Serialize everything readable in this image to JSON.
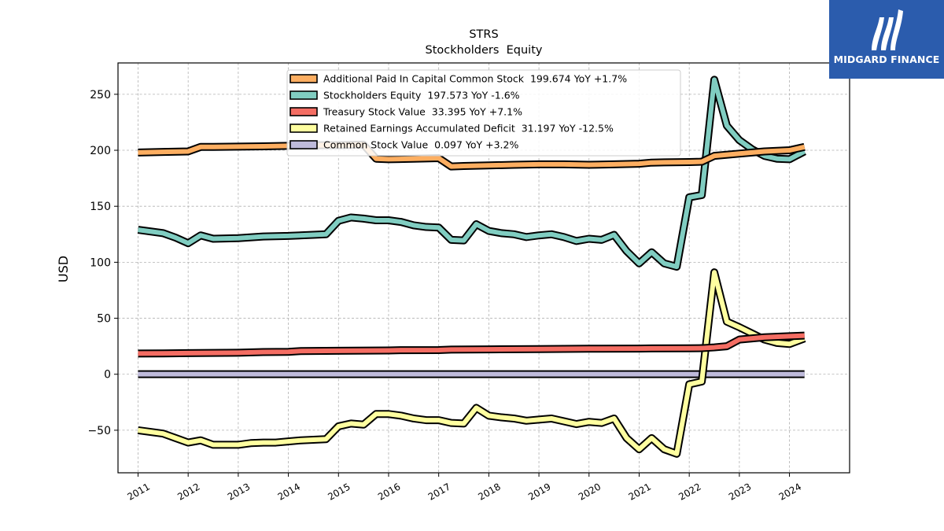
{
  "brand": {
    "name": "MIDGARD FINANCE",
    "bg_color": "#2b5cad"
  },
  "chart_data": {
    "type": "line",
    "title": "STRS",
    "subtitle": "Stockholders  Equity",
    "ylabel": "USD",
    "xlabel": "",
    "xlim": [
      2010.6,
      2025.2
    ],
    "ylim": [
      -88,
      278
    ],
    "yticks": [
      -50,
      0,
      50,
      100,
      150,
      200,
      250
    ],
    "xticks": [
      2011,
      2012,
      2013,
      2014,
      2015,
      2016,
      2017,
      2018,
      2019,
      2020,
      2021,
      2022,
      2023,
      2024
    ],
    "grid": true,
    "legend_position": "top-center",
    "series": [
      {
        "name": "Additional Paid In Capital Common Stock  199.674 YoY +1.7%",
        "color": "#fdae61",
        "points": [
          [
            2011.0,
            198
          ],
          [
            2011.5,
            198.5
          ],
          [
            2012.0,
            199
          ],
          [
            2012.25,
            203
          ],
          [
            2012.5,
            203
          ],
          [
            2013.0,
            203.3
          ],
          [
            2013.5,
            203.5
          ],
          [
            2014.0,
            204
          ],
          [
            2014.5,
            204.5
          ],
          [
            2015.0,
            204.6
          ],
          [
            2015.5,
            205
          ],
          [
            2015.75,
            192.5
          ],
          [
            2016.0,
            192
          ],
          [
            2016.5,
            192.5
          ],
          [
            2017.0,
            193
          ],
          [
            2017.25,
            185.5
          ],
          [
            2017.5,
            186
          ],
          [
            2018.0,
            186.5
          ],
          [
            2018.5,
            187
          ],
          [
            2019.0,
            187.5
          ],
          [
            2019.5,
            187.5
          ],
          [
            2020.0,
            187
          ],
          [
            2020.5,
            187.5
          ],
          [
            2021.0,
            188
          ],
          [
            2021.25,
            189
          ],
          [
            2021.5,
            189.2
          ],
          [
            2022.0,
            189.5
          ],
          [
            2022.25,
            189.8
          ],
          [
            2022.5,
            195
          ],
          [
            2023.0,
            197
          ],
          [
            2023.5,
            199
          ],
          [
            2024.0,
            200
          ],
          [
            2024.3,
            203
          ]
        ]
      },
      {
        "name": "Stockholders Equity  197.573 YoY -1.6%",
        "color": "#80cdc1",
        "points": [
          [
            2011.0,
            129
          ],
          [
            2011.5,
            126
          ],
          [
            2011.75,
            122
          ],
          [
            2012.0,
            117
          ],
          [
            2012.25,
            124
          ],
          [
            2012.5,
            121
          ],
          [
            2013.0,
            121.5
          ],
          [
            2013.5,
            123
          ],
          [
            2014.0,
            123.5
          ],
          [
            2014.5,
            124.5
          ],
          [
            2014.75,
            125
          ],
          [
            2015.0,
            137
          ],
          [
            2015.25,
            140
          ],
          [
            2015.5,
            139
          ],
          [
            2015.75,
            137.5
          ],
          [
            2016.0,
            137.5
          ],
          [
            2016.25,
            136
          ],
          [
            2016.5,
            133
          ],
          [
            2016.75,
            131.5
          ],
          [
            2017.0,
            131
          ],
          [
            2017.25,
            120
          ],
          [
            2017.5,
            119.5
          ],
          [
            2017.75,
            134
          ],
          [
            2018.0,
            128
          ],
          [
            2018.25,
            126
          ],
          [
            2018.5,
            125
          ],
          [
            2018.75,
            122.5
          ],
          [
            2019.0,
            124
          ],
          [
            2019.25,
            125
          ],
          [
            2019.5,
            122.5
          ],
          [
            2019.75,
            119
          ],
          [
            2020.0,
            121
          ],
          [
            2020.25,
            120
          ],
          [
            2020.5,
            124.5
          ],
          [
            2020.75,
            110
          ],
          [
            2021.0,
            99
          ],
          [
            2021.25,
            109
          ],
          [
            2021.5,
            99
          ],
          [
            2021.75,
            96
          ],
          [
            2022.0,
            158
          ],
          [
            2022.25,
            160
          ],
          [
            2022.5,
            263
          ],
          [
            2022.75,
            222
          ],
          [
            2023.0,
            209
          ],
          [
            2023.25,
            201
          ],
          [
            2023.5,
            195
          ],
          [
            2023.75,
            192.5
          ],
          [
            2024.0,
            192
          ],
          [
            2024.3,
            199
          ]
        ]
      },
      {
        "name": "Treasury Stock Value  33.395 YoY +7.1%",
        "color": "#f46d63",
        "points": [
          [
            2011.0,
            18.5
          ],
          [
            2011.5,
            18.6
          ],
          [
            2012.0,
            18.9
          ],
          [
            2013.0,
            19.2
          ],
          [
            2013.5,
            19.8
          ],
          [
            2014.0,
            20
          ],
          [
            2014.25,
            20.7
          ],
          [
            2015.0,
            21
          ],
          [
            2016.0,
            21.2
          ],
          [
            2016.25,
            21.5
          ],
          [
            2017.0,
            21.6
          ],
          [
            2017.25,
            22
          ],
          [
            2018.0,
            22.2
          ],
          [
            2019.0,
            22.5
          ],
          [
            2020.0,
            22.8
          ],
          [
            2021.0,
            22.9
          ],
          [
            2021.25,
            23.1
          ],
          [
            2022.0,
            23.2
          ],
          [
            2022.25,
            23.3
          ],
          [
            2022.5,
            24
          ],
          [
            2022.75,
            25
          ],
          [
            2023.0,
            31
          ],
          [
            2023.5,
            33
          ],
          [
            2024.0,
            34
          ],
          [
            2024.3,
            34.5
          ]
        ]
      },
      {
        "name": "Retained Earnings Accumulated Deficit  31.197 YoY -12.5%",
        "color": "#ffffa0",
        "points": [
          [
            2011.0,
            -50
          ],
          [
            2011.5,
            -53
          ],
          [
            2011.75,
            -57
          ],
          [
            2012.0,
            -61
          ],
          [
            2012.25,
            -59
          ],
          [
            2012.5,
            -63
          ],
          [
            2013.0,
            -63
          ],
          [
            2013.25,
            -61.5
          ],
          [
            2013.5,
            -61
          ],
          [
            2013.75,
            -61
          ],
          [
            2014.0,
            -60
          ],
          [
            2014.25,
            -59
          ],
          [
            2014.5,
            -58.5
          ],
          [
            2014.75,
            -58
          ],
          [
            2015.0,
            -46.5
          ],
          [
            2015.25,
            -44
          ],
          [
            2015.5,
            -45
          ],
          [
            2015.75,
            -35.5
          ],
          [
            2016.0,
            -35.5
          ],
          [
            2016.25,
            -37
          ],
          [
            2016.5,
            -39.5
          ],
          [
            2016.75,
            -41
          ],
          [
            2017.0,
            -41
          ],
          [
            2017.25,
            -43.5
          ],
          [
            2017.5,
            -44
          ],
          [
            2017.75,
            -30
          ],
          [
            2018.0,
            -37
          ],
          [
            2018.25,
            -38.5
          ],
          [
            2018.5,
            -39.5
          ],
          [
            2018.75,
            -41.5
          ],
          [
            2019.0,
            -40.5
          ],
          [
            2019.25,
            -39.5
          ],
          [
            2019.5,
            -42
          ],
          [
            2019.75,
            -44.5
          ],
          [
            2020.0,
            -42.5
          ],
          [
            2020.25,
            -43.5
          ],
          [
            2020.5,
            -39.5
          ],
          [
            2020.75,
            -57
          ],
          [
            2021.0,
            -67
          ],
          [
            2021.25,
            -57
          ],
          [
            2021.5,
            -67
          ],
          [
            2021.75,
            -71
          ],
          [
            2022.0,
            -9
          ],
          [
            2022.25,
            -6.5
          ],
          [
            2022.5,
            91
          ],
          [
            2022.75,
            47
          ],
          [
            2023.0,
            42
          ],
          [
            2023.25,
            36.5
          ],
          [
            2023.5,
            31
          ],
          [
            2023.75,
            28
          ],
          [
            2024.0,
            27
          ],
          [
            2024.3,
            32
          ]
        ]
      },
      {
        "name": "Common Stock Value  0.097 YoY +3.2%",
        "color": "#bebada",
        "points": [
          [
            2011.0,
            0.094
          ],
          [
            2024.3,
            0.097
          ]
        ]
      }
    ]
  }
}
